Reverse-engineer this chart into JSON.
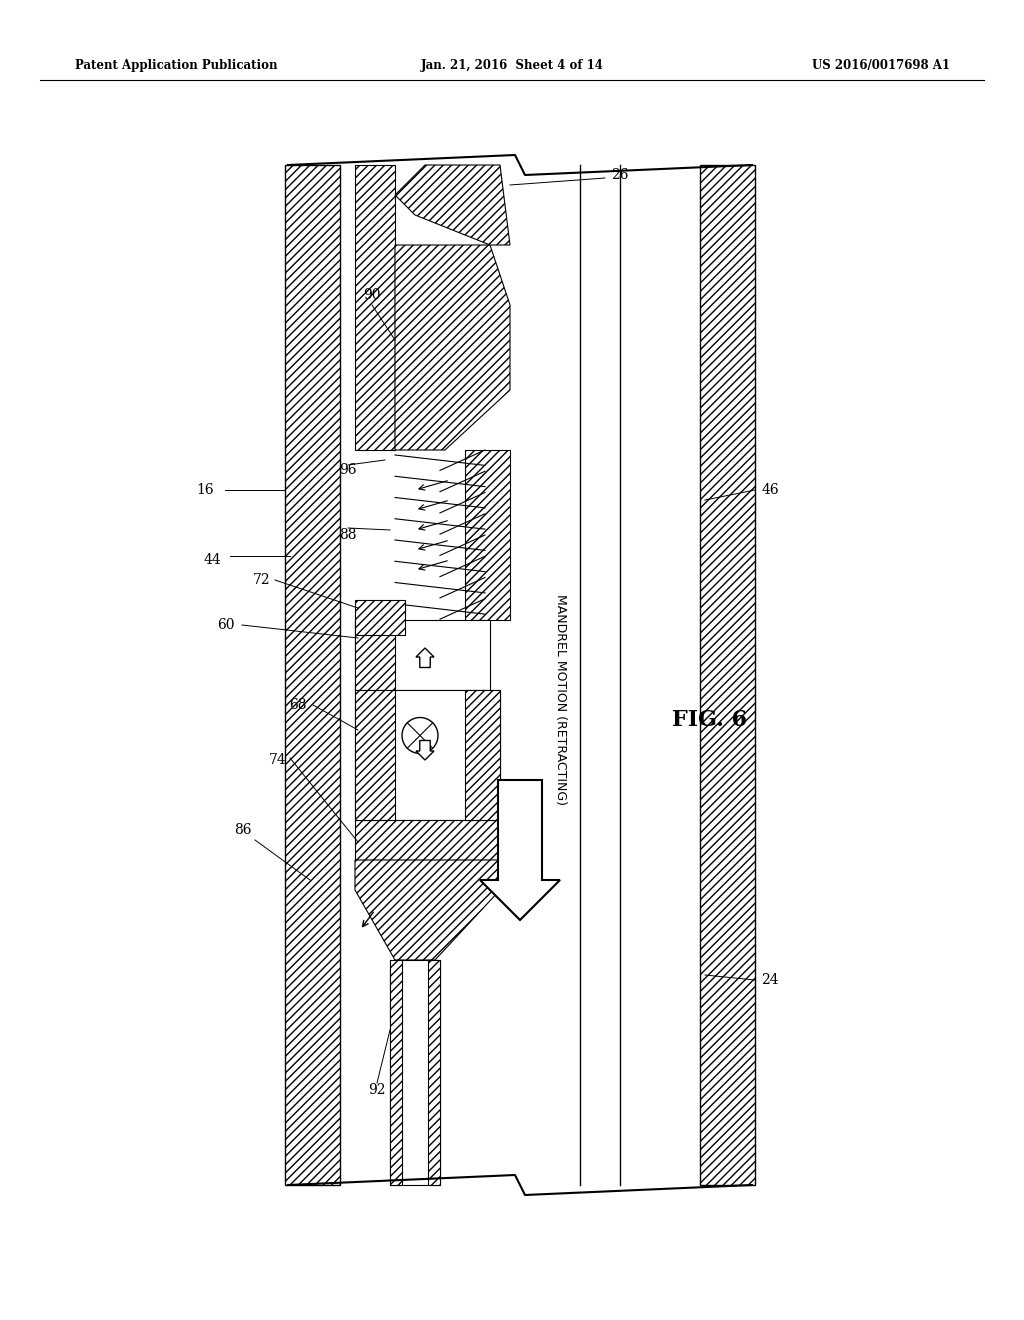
{
  "title_left": "Patent Application Publication",
  "title_mid": "Jan. 21, 2016  Sheet 4 of 14",
  "title_right": "US 2016/0017698 A1",
  "fig_label": "FIG. 6",
  "bg_color": "#ffffff"
}
